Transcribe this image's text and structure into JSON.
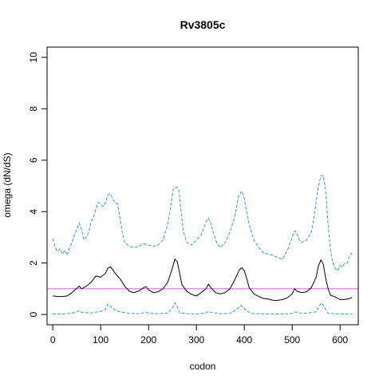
{
  "chart_data": {
    "type": "line",
    "title": "Rv3805c",
    "xlabel": "codon",
    "ylabel": "omega (dN/dS)",
    "xlim": [
      -12,
      638
    ],
    "ylim": [
      -0.4,
      10.4
    ],
    "x_ticks": [
      0,
      100,
      200,
      300,
      400,
      500,
      600
    ],
    "y_ticks": [
      0,
      2,
      4,
      6,
      8,
      10
    ],
    "reference_line": {
      "y": 1,
      "color": "#cc66cc"
    },
    "series": [
      {
        "style": "solid",
        "color": "#000000",
        "points": [
          [
            0,
            0.72
          ],
          [
            10,
            0.7
          ],
          [
            20,
            0.7
          ],
          [
            30,
            0.72
          ],
          [
            40,
            0.85
          ],
          [
            50,
            1.02
          ],
          [
            55,
            1.1
          ],
          [
            60,
            1.0
          ],
          [
            70,
            1.1
          ],
          [
            80,
            1.25
          ],
          [
            90,
            1.5
          ],
          [
            100,
            1.45
          ],
          [
            110,
            1.6
          ],
          [
            115,
            1.8
          ],
          [
            120,
            1.85
          ],
          [
            125,
            1.75
          ],
          [
            130,
            1.6
          ],
          [
            140,
            1.4
          ],
          [
            150,
            1.1
          ],
          [
            160,
            0.9
          ],
          [
            170,
            0.85
          ],
          [
            180,
            0.92
          ],
          [
            190,
            1.05
          ],
          [
            195,
            1.08
          ],
          [
            200,
            0.95
          ],
          [
            210,
            0.85
          ],
          [
            220,
            0.88
          ],
          [
            230,
            1.0
          ],
          [
            240,
            1.25
          ],
          [
            248,
            1.7
          ],
          [
            255,
            2.15
          ],
          [
            260,
            2.05
          ],
          [
            265,
            1.6
          ],
          [
            270,
            1.15
          ],
          [
            280,
            0.9
          ],
          [
            290,
            0.78
          ],
          [
            300,
            0.72
          ],
          [
            310,
            0.85
          ],
          [
            320,
            1.0
          ],
          [
            325,
            1.18
          ],
          [
            330,
            1.05
          ],
          [
            340,
            0.85
          ],
          [
            350,
            0.8
          ],
          [
            360,
            0.85
          ],
          [
            370,
            1.0
          ],
          [
            380,
            1.35
          ],
          [
            390,
            1.75
          ],
          [
            395,
            1.82
          ],
          [
            400,
            1.7
          ],
          [
            405,
            1.4
          ],
          [
            410,
            1.05
          ],
          [
            420,
            0.8
          ],
          [
            430,
            0.7
          ],
          [
            440,
            0.62
          ],
          [
            450,
            0.6
          ],
          [
            460,
            0.55
          ],
          [
            470,
            0.55
          ],
          [
            480,
            0.58
          ],
          [
            490,
            0.65
          ],
          [
            500,
            0.8
          ],
          [
            505,
            1.0
          ],
          [
            510,
            0.9
          ],
          [
            520,
            0.85
          ],
          [
            530,
            0.88
          ],
          [
            540,
            1.05
          ],
          [
            550,
            1.45
          ],
          [
            555,
            1.9
          ],
          [
            560,
            2.12
          ],
          [
            565,
            1.95
          ],
          [
            570,
            1.4
          ],
          [
            575,
            1.0
          ],
          [
            580,
            0.75
          ],
          [
            590,
            0.68
          ],
          [
            600,
            0.58
          ],
          [
            610,
            0.58
          ],
          [
            620,
            0.62
          ],
          [
            625,
            0.66
          ]
        ]
      },
      {
        "style": "dashed",
        "color": "#3399dd",
        "points": [
          [
            0,
            2.95
          ],
          [
            5,
            2.6
          ],
          [
            10,
            2.45
          ],
          [
            15,
            2.55
          ],
          [
            20,
            2.35
          ],
          [
            25,
            2.5
          ],
          [
            30,
            2.3
          ],
          [
            35,
            2.6
          ],
          [
            40,
            2.8
          ],
          [
            45,
            3.1
          ],
          [
            50,
            3.3
          ],
          [
            55,
            3.55
          ],
          [
            60,
            3.3
          ],
          [
            65,
            2.9
          ],
          [
            70,
            3.0
          ],
          [
            75,
            3.2
          ],
          [
            80,
            3.6
          ],
          [
            85,
            3.8
          ],
          [
            90,
            4.1
          ],
          [
            95,
            4.35
          ],
          [
            100,
            4.3
          ],
          [
            105,
            4.2
          ],
          [
            110,
            4.35
          ],
          [
            115,
            4.65
          ],
          [
            120,
            4.7
          ],
          [
            125,
            4.5
          ],
          [
            130,
            4.35
          ],
          [
            135,
            4.3
          ],
          [
            140,
            3.8
          ],
          [
            145,
            3.2
          ],
          [
            150,
            2.8
          ],
          [
            160,
            2.65
          ],
          [
            170,
            2.6
          ],
          [
            180,
            2.65
          ],
          [
            190,
            2.75
          ],
          [
            200,
            2.7
          ],
          [
            210,
            2.65
          ],
          [
            220,
            2.7
          ],
          [
            230,
            2.9
          ],
          [
            240,
            3.5
          ],
          [
            248,
            4.4
          ],
          [
            252,
            4.9
          ],
          [
            258,
            4.95
          ],
          [
            263,
            4.85
          ],
          [
            268,
            4.0
          ],
          [
            273,
            3.2
          ],
          [
            280,
            2.8
          ],
          [
            290,
            2.7
          ],
          [
            300,
            2.9
          ],
          [
            310,
            3.1
          ],
          [
            320,
            3.6
          ],
          [
            325,
            3.75
          ],
          [
            330,
            3.55
          ],
          [
            335,
            3.2
          ],
          [
            340,
            2.9
          ],
          [
            345,
            2.7
          ],
          [
            350,
            2.6
          ],
          [
            360,
            2.8
          ],
          [
            365,
            3.0
          ],
          [
            370,
            3.2
          ],
          [
            380,
            3.8
          ],
          [
            388,
            4.6
          ],
          [
            395,
            4.8
          ],
          [
            400,
            4.5
          ],
          [
            405,
            4.0
          ],
          [
            410,
            3.5
          ],
          [
            420,
            2.9
          ],
          [
            430,
            2.6
          ],
          [
            440,
            2.4
          ],
          [
            450,
            2.35
          ],
          [
            460,
            2.3
          ],
          [
            470,
            2.2
          ],
          [
            480,
            2.15
          ],
          [
            490,
            2.5
          ],
          [
            500,
            3.0
          ],
          [
            505,
            3.25
          ],
          [
            510,
            3.15
          ],
          [
            515,
            2.9
          ],
          [
            520,
            2.8
          ],
          [
            530,
            2.9
          ],
          [
            540,
            3.2
          ],
          [
            545,
            3.7
          ],
          [
            550,
            4.4
          ],
          [
            555,
            5.0
          ],
          [
            560,
            5.4
          ],
          [
            565,
            5.4
          ],
          [
            570,
            4.8
          ],
          [
            575,
            3.5
          ],
          [
            580,
            2.5
          ],
          [
            585,
            2.0
          ],
          [
            590,
            1.8
          ],
          [
            595,
            1.7
          ],
          [
            600,
            1.9
          ],
          [
            605,
            1.85
          ],
          [
            610,
            2.0
          ],
          [
            615,
            2.0
          ],
          [
            620,
            2.25
          ],
          [
            625,
            2.4
          ]
        ]
      },
      {
        "style": "dashed",
        "color": "#3399dd",
        "points": [
          [
            0,
            0.02
          ],
          [
            20,
            0.02
          ],
          [
            40,
            0.05
          ],
          [
            50,
            0.1
          ],
          [
            55,
            0.15
          ],
          [
            60,
            0.08
          ],
          [
            80,
            0.06
          ],
          [
            100,
            0.12
          ],
          [
            110,
            0.2
          ],
          [
            115,
            0.4
          ],
          [
            120,
            0.32
          ],
          [
            130,
            0.18
          ],
          [
            140,
            0.1
          ],
          [
            160,
            0.04
          ],
          [
            180,
            0.03
          ],
          [
            195,
            0.08
          ],
          [
            200,
            0.05
          ],
          [
            220,
            0.03
          ],
          [
            240,
            0.05
          ],
          [
            250,
            0.25
          ],
          [
            255,
            0.45
          ],
          [
            260,
            0.3
          ],
          [
            265,
            0.06
          ],
          [
            280,
            0.03
          ],
          [
            300,
            0.02
          ],
          [
            320,
            0.06
          ],
          [
            325,
            0.12
          ],
          [
            330,
            0.08
          ],
          [
            350,
            0.03
          ],
          [
            370,
            0.04
          ],
          [
            385,
            0.2
          ],
          [
            392,
            0.35
          ],
          [
            398,
            0.28
          ],
          [
            405,
            0.12
          ],
          [
            420,
            0.03
          ],
          [
            450,
            0.02
          ],
          [
            480,
            0.02
          ],
          [
            500,
            0.04
          ],
          [
            508,
            0.1
          ],
          [
            515,
            0.06
          ],
          [
            530,
            0.05
          ],
          [
            550,
            0.1
          ],
          [
            557,
            0.35
          ],
          [
            562,
            0.45
          ],
          [
            567,
            0.3
          ],
          [
            575,
            0.04
          ],
          [
            600,
            0.02
          ],
          [
            625,
            0.02
          ]
        ]
      }
    ]
  }
}
